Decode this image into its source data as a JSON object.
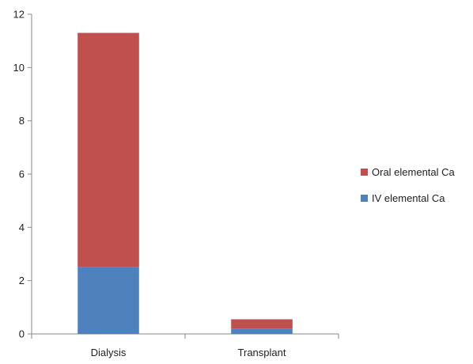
{
  "chart_data": {
    "type": "bar",
    "stacked": true,
    "title": "",
    "xlabel": "",
    "ylabel": "",
    "categories": [
      "Dialysis",
      "Transplant"
    ],
    "series": [
      {
        "name": "IV elemental Ca",
        "values": [
          2.5,
          0.2
        ],
        "color": "#4f81bd"
      },
      {
        "name": "Oral elemental Ca",
        "values": [
          8.8,
          0.35
        ],
        "color": "#c0504d"
      }
    ],
    "ylim": [
      0,
      12
    ],
    "yticks": [
      0,
      2,
      4,
      6,
      8,
      10,
      12
    ],
    "grid": false,
    "legend_position": "right"
  }
}
